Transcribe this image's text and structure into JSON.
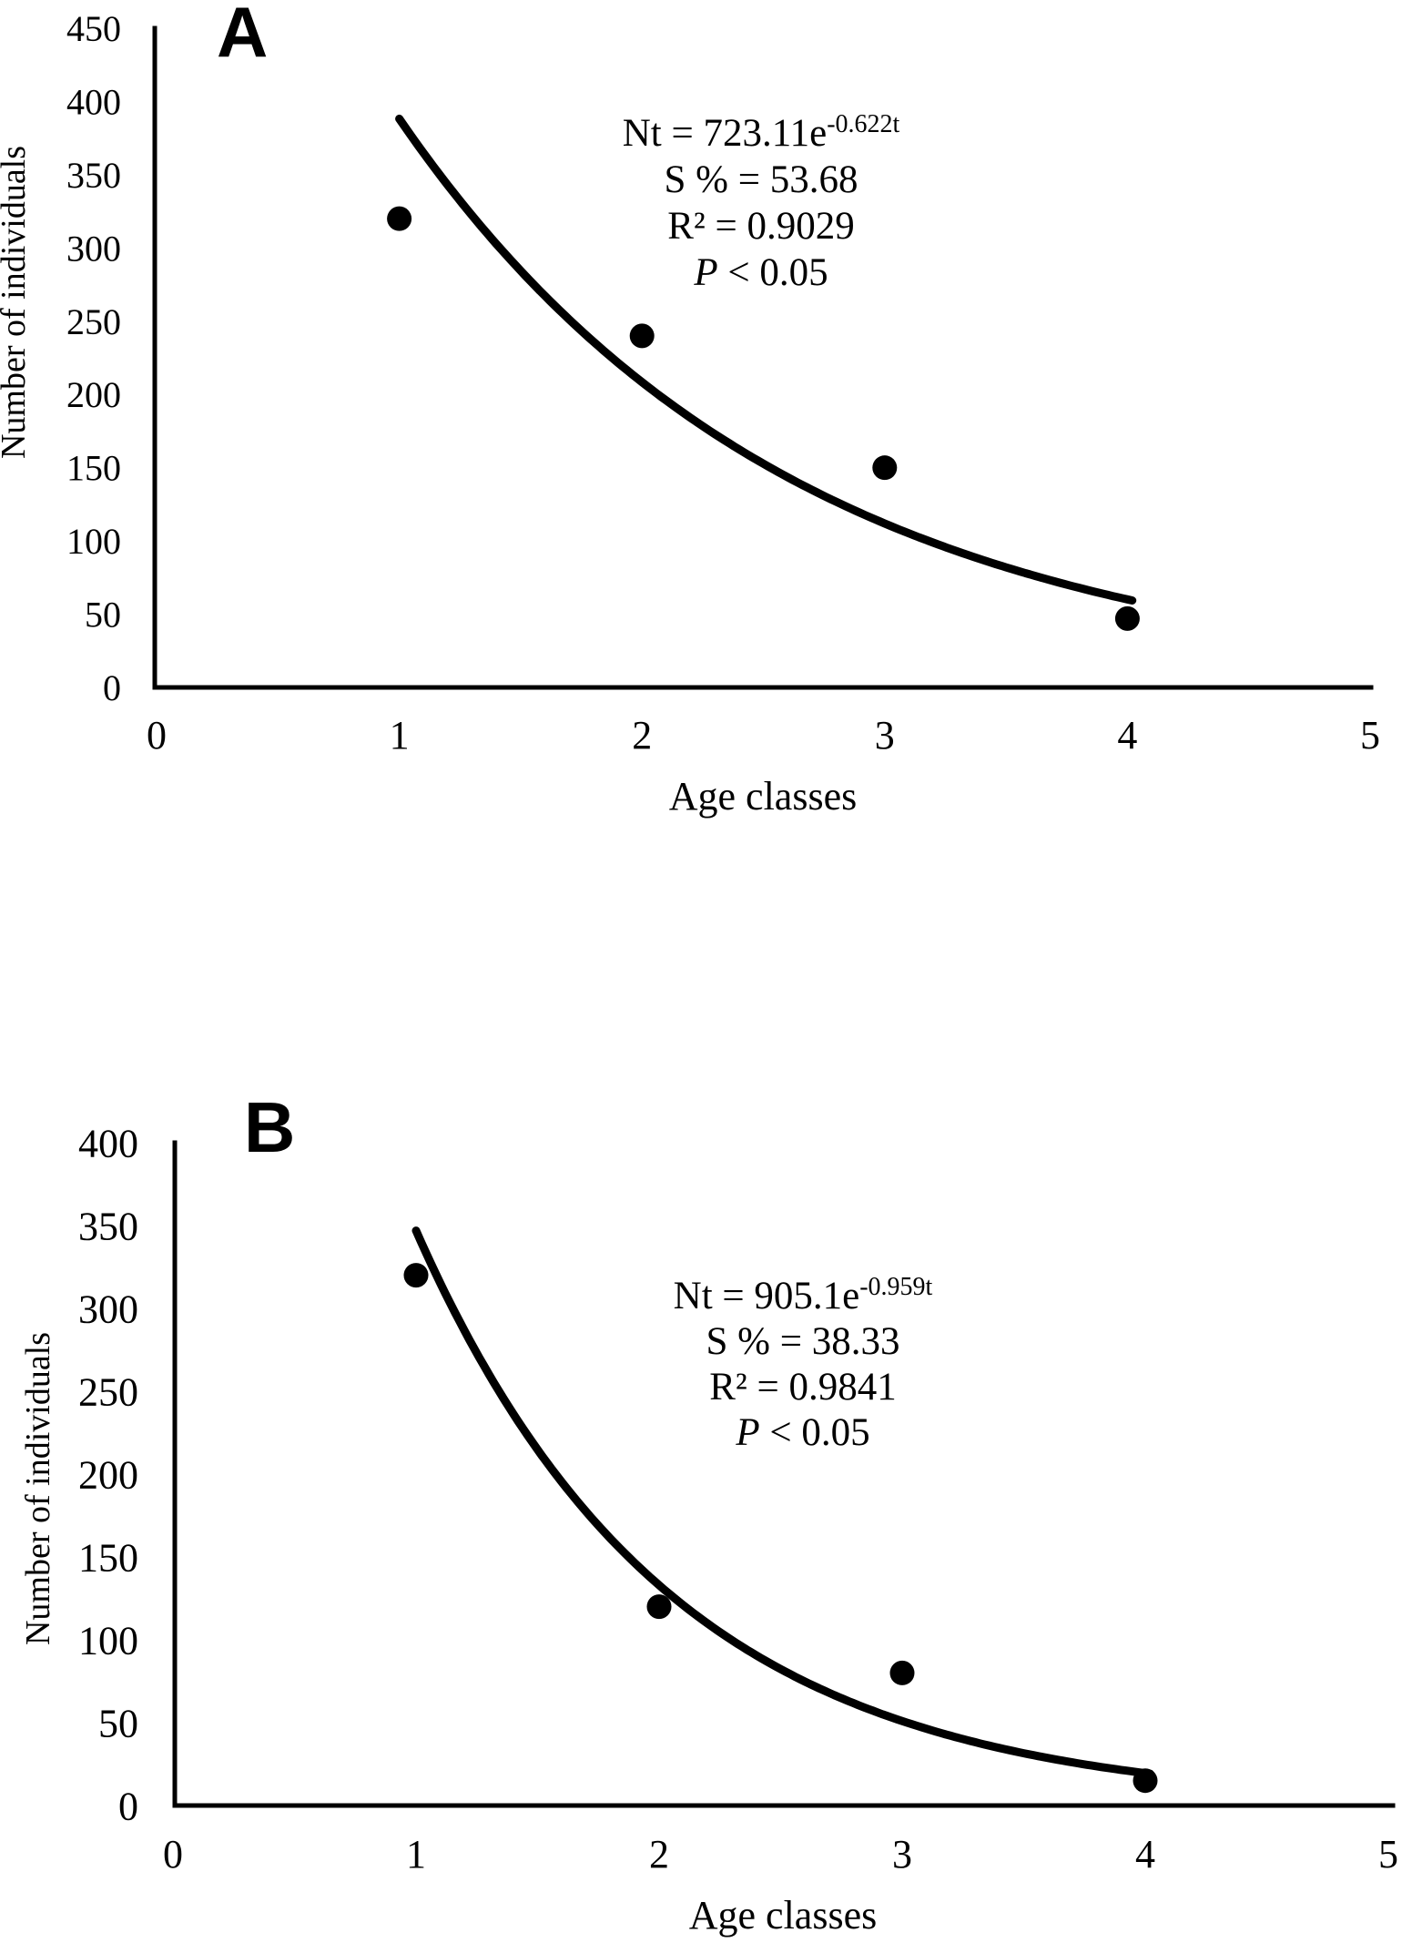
{
  "figure": {
    "background": "#ffffff",
    "ink_color": "#000000"
  },
  "chart_data": [
    {
      "type": "scatter",
      "panel_label": "A",
      "xlabel": "Age classes",
      "ylabel": "Number of individuals",
      "x": [
        1,
        2,
        3,
        4
      ],
      "y": [
        320,
        240,
        150,
        47
      ],
      "xlim": [
        0,
        5
      ],
      "ylim": [
        0,
        450
      ],
      "xtick_step": 1,
      "ytick_step": 50,
      "grid": false,
      "legend": null,
      "marker": "filled-black-circle",
      "fit_curve": {
        "model": "exponential",
        "equation": "Nt = 723.11e^(-0.622t)",
        "a": 723.11,
        "b": -0.622,
        "t_range": [
          1,
          4.03
        ]
      },
      "annotation_lines": [
        [
          {
            "t": "Nt = 723.11e"
          },
          {
            "t": "-0.622t",
            "sup": true
          }
        ],
        [
          {
            "t": "S % = 53.68"
          }
        ],
        [
          {
            "t": "R² = 0.9029"
          }
        ],
        [
          {
            "t": "P",
            "italic": true
          },
          {
            "t": " < 0.05"
          }
        ]
      ]
    },
    {
      "type": "scatter",
      "panel_label": "B",
      "xlabel": "Age classes",
      "ylabel": "Number of individuals",
      "x": [
        1,
        2,
        3,
        4
      ],
      "y": [
        320,
        120,
        80,
        15
      ],
      "xlim": [
        0,
        5
      ],
      "ylim": [
        0,
        400
      ],
      "xtick_step": 1,
      "ytick_step": 50,
      "grid": false,
      "legend": null,
      "marker": "filled-black-circle",
      "fit_curve": {
        "model": "exponential",
        "equation": "Nt = 905.1e^(-0.959t)",
        "a": 905.1,
        "b": -0.959,
        "t_range": [
          1,
          4.02
        ]
      },
      "annotation_lines": [
        [
          {
            "t": "Nt = 905.1e"
          },
          {
            "t": "-0.959t",
            "sup": true
          }
        ],
        [
          {
            "t": "S % = 38.33"
          }
        ],
        [
          {
            "t": "R² = 0.9841"
          }
        ],
        [
          {
            "t": "P",
            "italic": true
          },
          {
            "t": " < 0.05"
          }
        ]
      ]
    }
  ]
}
